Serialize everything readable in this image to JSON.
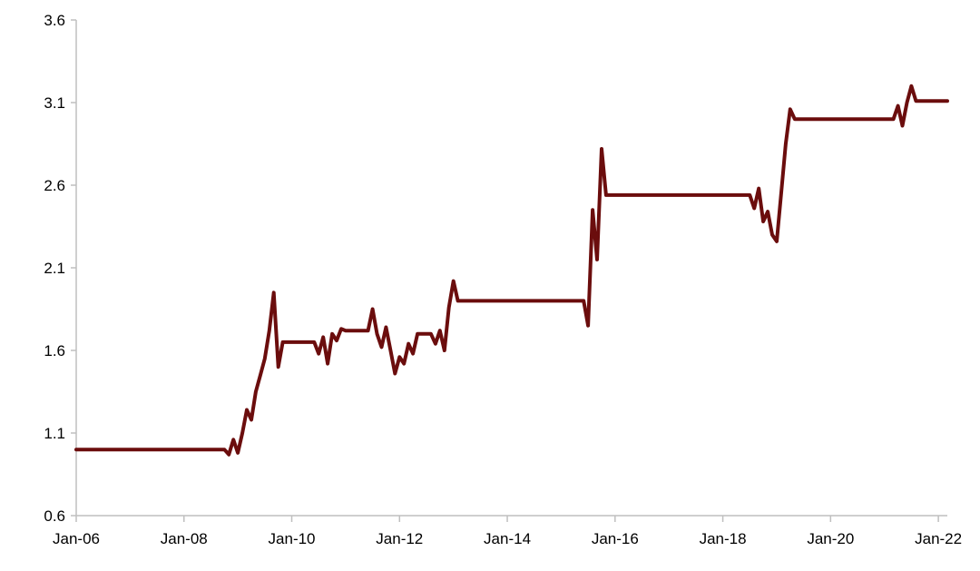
{
  "chart_data": {
    "type": "line",
    "title": "",
    "xlabel": "",
    "ylabel": "",
    "x_ticks": [
      "Jan-06",
      "Jan-08",
      "Jan-10",
      "Jan-12",
      "Jan-14",
      "Jan-16",
      "Jan-18",
      "Jan-20",
      "Jan-22"
    ],
    "y_ticks": [
      "0.6",
      "1.1",
      "1.6",
      "2.1",
      "2.6",
      "3.1",
      "3.6"
    ],
    "xlim": [
      "2006-01",
      "2022-03"
    ],
    "ylim": [
      0.6,
      3.6
    ],
    "grid": false,
    "legend": "none",
    "series": [
      {
        "color": "#6b0d0d",
        "points": [
          [
            "2006-01",
            1.0
          ],
          [
            "2008-10",
            1.0
          ],
          [
            "2008-11",
            0.97
          ],
          [
            "2008-12",
            1.06
          ],
          [
            "2009-01",
            0.98
          ],
          [
            "2009-02",
            1.1
          ],
          [
            "2009-03",
            1.24
          ],
          [
            "2009-04",
            1.18
          ],
          [
            "2009-05",
            1.35
          ],
          [
            "2009-06",
            1.45
          ],
          [
            "2009-07",
            1.55
          ],
          [
            "2009-08",
            1.72
          ],
          [
            "2009-09",
            1.95
          ],
          [
            "2009-10",
            1.5
          ],
          [
            "2009-11",
            1.65
          ],
          [
            "2010-06",
            1.65
          ],
          [
            "2010-07",
            1.58
          ],
          [
            "2010-08",
            1.68
          ],
          [
            "2010-09",
            1.52
          ],
          [
            "2010-10",
            1.7
          ],
          [
            "2010-11",
            1.66
          ],
          [
            "2010-12",
            1.73
          ],
          [
            "2011-01",
            1.72
          ],
          [
            "2011-06",
            1.72
          ],
          [
            "2011-07",
            1.85
          ],
          [
            "2011-08",
            1.7
          ],
          [
            "2011-09",
            1.62
          ],
          [
            "2011-10",
            1.74
          ],
          [
            "2011-11",
            1.6
          ],
          [
            "2011-12",
            1.46
          ],
          [
            "2012-01",
            1.56
          ],
          [
            "2012-02",
            1.52
          ],
          [
            "2012-03",
            1.64
          ],
          [
            "2012-04",
            1.58
          ],
          [
            "2012-05",
            1.7
          ],
          [
            "2012-06",
            1.7
          ],
          [
            "2012-08",
            1.7
          ],
          [
            "2012-09",
            1.64
          ],
          [
            "2012-10",
            1.72
          ],
          [
            "2012-11",
            1.6
          ],
          [
            "2012-12",
            1.86
          ],
          [
            "2013-01",
            2.02
          ],
          [
            "2013-02",
            1.9
          ],
          [
            "2015-06",
            1.9
          ],
          [
            "2015-07",
            1.75
          ],
          [
            "2015-08",
            2.45
          ],
          [
            "2015-09",
            2.15
          ],
          [
            "2015-10",
            2.82
          ],
          [
            "2015-11",
            2.54
          ],
          [
            "2018-07",
            2.54
          ],
          [
            "2018-08",
            2.46
          ],
          [
            "2018-09",
            2.58
          ],
          [
            "2018-10",
            2.38
          ],
          [
            "2018-11",
            2.44
          ],
          [
            "2018-12",
            2.3
          ],
          [
            "2019-01",
            2.26
          ],
          [
            "2019-02",
            2.55
          ],
          [
            "2019-03",
            2.85
          ],
          [
            "2019-04",
            3.06
          ],
          [
            "2019-05",
            3.0
          ],
          [
            "2021-03",
            3.0
          ],
          [
            "2021-04",
            3.08
          ],
          [
            "2021-05",
            2.96
          ],
          [
            "2021-06",
            3.1
          ],
          [
            "2021-07",
            3.2
          ],
          [
            "2021-08",
            3.11
          ],
          [
            "2022-03",
            3.11
          ]
        ]
      }
    ]
  }
}
